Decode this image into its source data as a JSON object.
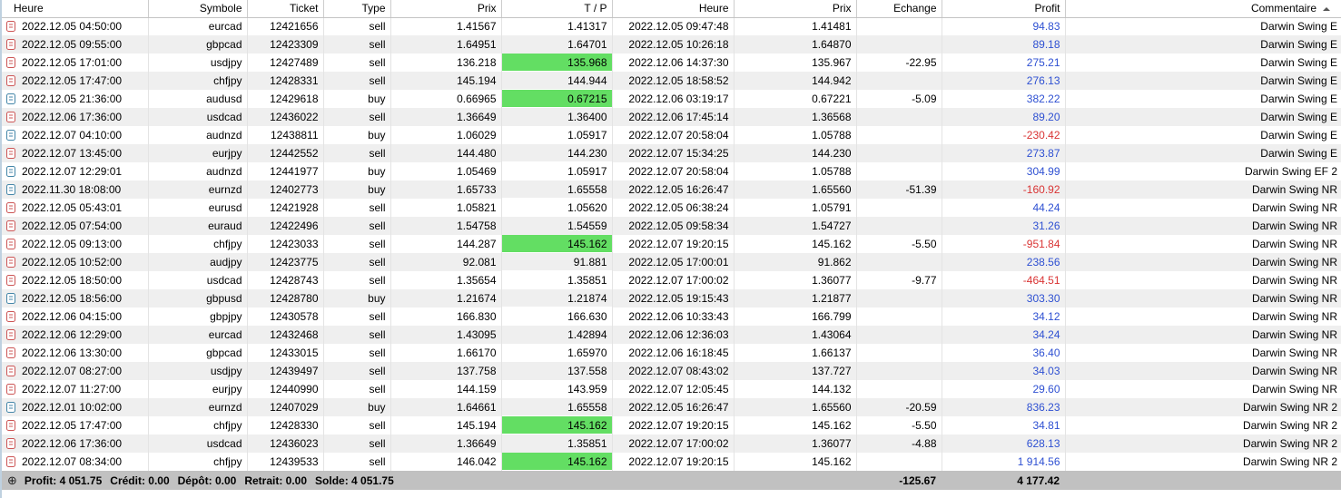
{
  "colors": {
    "tp_highlight": "#63de63",
    "profit_positive": "#2e50d2",
    "profit_negative": "#d93434",
    "row_alternate": "#efefef",
    "summary_bar_bg": "#c1c1c1",
    "sell_icon": "#cc5555",
    "buy_icon": "#4486a8"
  },
  "table": {
    "columns": [
      {
        "label": "Heure"
      },
      {
        "label": "Symbole"
      },
      {
        "label": "Ticket"
      },
      {
        "label": "Type"
      },
      {
        "label": "Prix"
      },
      {
        "label": "T / P"
      },
      {
        "label": "Heure"
      },
      {
        "label": "Prix"
      },
      {
        "label": "Echange"
      },
      {
        "label": "Profit"
      },
      {
        "label": "Commentaire",
        "sort": "asc"
      }
    ],
    "rows": [
      {
        "open_time": "2022.12.05 04:50:00",
        "symbol": "eurcad",
        "ticket": "12421656",
        "type": "sell",
        "open_price": "1.41567",
        "tp": "1.41317",
        "tp_highlight": false,
        "close_time": "2022.12.05 09:47:48",
        "close_price": "1.41481",
        "swap": "",
        "profit": "94.83",
        "comment": "Darwin Swing E"
      },
      {
        "open_time": "2022.12.05 09:55:00",
        "symbol": "gbpcad",
        "ticket": "12423309",
        "type": "sell",
        "open_price": "1.64951",
        "tp": "1.64701",
        "tp_highlight": false,
        "close_time": "2022.12.05 10:26:18",
        "close_price": "1.64870",
        "swap": "",
        "profit": "89.18",
        "comment": "Darwin Swing E"
      },
      {
        "open_time": "2022.12.05 17:01:00",
        "symbol": "usdjpy",
        "ticket": "12427489",
        "type": "sell",
        "open_price": "136.218",
        "tp": "135.968",
        "tp_highlight": true,
        "close_time": "2022.12.06 14:37:30",
        "close_price": "135.967",
        "swap": "-22.95",
        "profit": "275.21",
        "comment": "Darwin Swing E"
      },
      {
        "open_time": "2022.12.05 17:47:00",
        "symbol": "chfjpy",
        "ticket": "12428331",
        "type": "sell",
        "open_price": "145.194",
        "tp": "144.944",
        "tp_highlight": true,
        "close_time": "2022.12.05 18:58:52",
        "close_price": "144.942",
        "swap": "",
        "profit": "276.13",
        "comment": "Darwin Swing E"
      },
      {
        "open_time": "2022.12.05 21:36:00",
        "symbol": "audusd",
        "ticket": "12429618",
        "type": "buy",
        "open_price": "0.66965",
        "tp": "0.67215",
        "tp_highlight": true,
        "close_time": "2022.12.06 03:19:17",
        "close_price": "0.67221",
        "swap": "-5.09",
        "profit": "382.22",
        "comment": "Darwin Swing E"
      },
      {
        "open_time": "2022.12.06 17:36:00",
        "symbol": "usdcad",
        "ticket": "12436022",
        "type": "sell",
        "open_price": "1.36649",
        "tp": "1.36400",
        "tp_highlight": false,
        "close_time": "2022.12.06 17:45:14",
        "close_price": "1.36568",
        "swap": "",
        "profit": "89.20",
        "comment": "Darwin Swing E"
      },
      {
        "open_time": "2022.12.07 04:10:00",
        "symbol": "audnzd",
        "ticket": "12438811",
        "type": "buy",
        "open_price": "1.06029",
        "tp": "1.05917",
        "tp_highlight": false,
        "close_time": "2022.12.07 20:58:04",
        "close_price": "1.05788",
        "swap": "",
        "profit": "-230.42",
        "comment": "Darwin Swing E"
      },
      {
        "open_time": "2022.12.07 13:45:00",
        "symbol": "eurjpy",
        "ticket": "12442552",
        "type": "sell",
        "open_price": "144.480",
        "tp": "144.230",
        "tp_highlight": true,
        "close_time": "2022.12.07 15:34:25",
        "close_price": "144.230",
        "swap": "",
        "profit": "273.87",
        "comment": "Darwin Swing E"
      },
      {
        "open_time": "2022.12.07 12:29:01",
        "symbol": "audnzd",
        "ticket": "12441977",
        "type": "buy",
        "open_price": "1.05469",
        "tp": "1.05917",
        "tp_highlight": false,
        "close_time": "2022.12.07 20:58:04",
        "close_price": "1.05788",
        "swap": "",
        "profit": "304.99",
        "comment": "Darwin Swing EF 2"
      },
      {
        "open_time": "2022.11.30 18:08:00",
        "symbol": "eurnzd",
        "ticket": "12402773",
        "type": "buy",
        "open_price": "1.65733",
        "tp": "1.65558",
        "tp_highlight": true,
        "close_time": "2022.12.05 16:26:47",
        "close_price": "1.65560",
        "swap": "-51.39",
        "profit": "-160.92",
        "comment": "Darwin Swing NR"
      },
      {
        "open_time": "2022.12.05 05:43:01",
        "symbol": "eurusd",
        "ticket": "12421928",
        "type": "sell",
        "open_price": "1.05821",
        "tp": "1.05620",
        "tp_highlight": false,
        "close_time": "2022.12.05 06:38:24",
        "close_price": "1.05791",
        "swap": "",
        "profit": "44.24",
        "comment": "Darwin Swing NR"
      },
      {
        "open_time": "2022.12.05 07:54:00",
        "symbol": "euraud",
        "ticket": "12422496",
        "type": "sell",
        "open_price": "1.54758",
        "tp": "1.54559",
        "tp_highlight": false,
        "close_time": "2022.12.05 09:58:34",
        "close_price": "1.54727",
        "swap": "",
        "profit": "31.26",
        "comment": "Darwin Swing NR"
      },
      {
        "open_time": "2022.12.05 09:13:00",
        "symbol": "chfjpy",
        "ticket": "12423033",
        "type": "sell",
        "open_price": "144.287",
        "tp": "145.162",
        "tp_highlight": true,
        "close_time": "2022.12.07 19:20:15",
        "close_price": "145.162",
        "swap": "-5.50",
        "profit": "-951.84",
        "comment": "Darwin Swing NR"
      },
      {
        "open_time": "2022.12.05 10:52:00",
        "symbol": "audjpy",
        "ticket": "12423775",
        "type": "sell",
        "open_price": "92.081",
        "tp": "91.881",
        "tp_highlight": true,
        "close_time": "2022.12.05 17:00:01",
        "close_price": "91.862",
        "swap": "",
        "profit": "238.56",
        "comment": "Darwin Swing NR"
      },
      {
        "open_time": "2022.12.05 18:50:00",
        "symbol": "usdcad",
        "ticket": "12428743",
        "type": "sell",
        "open_price": "1.35654",
        "tp": "1.35851",
        "tp_highlight": false,
        "close_time": "2022.12.07 17:00:02",
        "close_price": "1.36077",
        "swap": "-9.77",
        "profit": "-464.51",
        "comment": "Darwin Swing NR"
      },
      {
        "open_time": "2022.12.05 18:56:00",
        "symbol": "gbpusd",
        "ticket": "12428780",
        "type": "buy",
        "open_price": "1.21674",
        "tp": "1.21874",
        "tp_highlight": true,
        "close_time": "2022.12.05 19:15:43",
        "close_price": "1.21877",
        "swap": "",
        "profit": "303.30",
        "comment": "Darwin Swing NR"
      },
      {
        "open_time": "2022.12.06 04:15:00",
        "symbol": "gbpjpy",
        "ticket": "12430578",
        "type": "sell",
        "open_price": "166.830",
        "tp": "166.630",
        "tp_highlight": false,
        "close_time": "2022.12.06 10:33:43",
        "close_price": "166.799",
        "swap": "",
        "profit": "34.12",
        "comment": "Darwin Swing NR"
      },
      {
        "open_time": "2022.12.06 12:29:00",
        "symbol": "eurcad",
        "ticket": "12432468",
        "type": "sell",
        "open_price": "1.43095",
        "tp": "1.42894",
        "tp_highlight": false,
        "close_time": "2022.12.06 12:36:03",
        "close_price": "1.43064",
        "swap": "",
        "profit": "34.24",
        "comment": "Darwin Swing NR"
      },
      {
        "open_time": "2022.12.06 13:30:00",
        "symbol": "gbpcad",
        "ticket": "12433015",
        "type": "sell",
        "open_price": "1.66170",
        "tp": "1.65970",
        "tp_highlight": false,
        "close_time": "2022.12.06 16:18:45",
        "close_price": "1.66137",
        "swap": "",
        "profit": "36.40",
        "comment": "Darwin Swing NR"
      },
      {
        "open_time": "2022.12.07 08:27:00",
        "symbol": "usdjpy",
        "ticket": "12439497",
        "type": "sell",
        "open_price": "137.758",
        "tp": "137.558",
        "tp_highlight": false,
        "close_time": "2022.12.07 08:43:02",
        "close_price": "137.727",
        "swap": "",
        "profit": "34.03",
        "comment": "Darwin Swing NR"
      },
      {
        "open_time": "2022.12.07 11:27:00",
        "symbol": "eurjpy",
        "ticket": "12440990",
        "type": "sell",
        "open_price": "144.159",
        "tp": "143.959",
        "tp_highlight": false,
        "close_time": "2022.12.07 12:05:45",
        "close_price": "144.132",
        "swap": "",
        "profit": "29.60",
        "comment": "Darwin Swing NR"
      },
      {
        "open_time": "2022.12.01 10:02:00",
        "symbol": "eurnzd",
        "ticket": "12407029",
        "type": "buy",
        "open_price": "1.64661",
        "tp": "1.65558",
        "tp_highlight": true,
        "close_time": "2022.12.05 16:26:47",
        "close_price": "1.65560",
        "swap": "-20.59",
        "profit": "836.23",
        "comment": "Darwin Swing NR 2"
      },
      {
        "open_time": "2022.12.05 17:47:00",
        "symbol": "chfjpy",
        "ticket": "12428330",
        "type": "sell",
        "open_price": "145.194",
        "tp": "145.162",
        "tp_highlight": true,
        "close_time": "2022.12.07 19:20:15",
        "close_price": "145.162",
        "swap": "-5.50",
        "profit": "34.81",
        "comment": "Darwin Swing NR 2"
      },
      {
        "open_time": "2022.12.06 17:36:00",
        "symbol": "usdcad",
        "ticket": "12436023",
        "type": "sell",
        "open_price": "1.36649",
        "tp": "1.35851",
        "tp_highlight": false,
        "close_time": "2022.12.07 17:00:02",
        "close_price": "1.36077",
        "swap": "-4.88",
        "profit": "628.13",
        "comment": "Darwin Swing NR 2"
      },
      {
        "open_time": "2022.12.07 08:34:00",
        "symbol": "chfjpy",
        "ticket": "12439533",
        "type": "sell",
        "open_price": "146.042",
        "tp": "145.162",
        "tp_highlight": true,
        "close_time": "2022.12.07 19:20:15",
        "close_price": "145.162",
        "swap": "",
        "profit": "1 914.56",
        "comment": "Darwin Swing NR 2"
      }
    ]
  },
  "summary": {
    "expand_icon": "⊕",
    "items": [
      {
        "label": "Profit:",
        "value": "4 051.75"
      },
      {
        "label": "Crédit:",
        "value": "0.00"
      },
      {
        "label": "Dépôt:",
        "value": "0.00"
      },
      {
        "label": "Retrait:",
        "value": "0.00"
      },
      {
        "label": "Solde:",
        "value": "4 051.75"
      }
    ],
    "swap_total": "-125.67",
    "profit_total": "4 177.42"
  }
}
